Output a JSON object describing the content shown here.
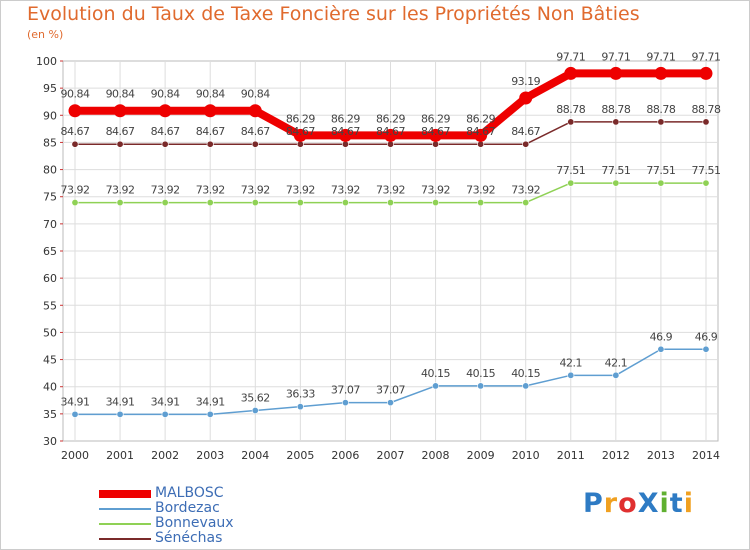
{
  "title": "Evolution du Taux de Taxe Foncière sur les Propriétés Non Bâties",
  "unit_label": "(en %)",
  "logo": {
    "text": "ProXiti",
    "colors": [
      "#2e7bc4",
      "#f0a020",
      "#e03030",
      "#2e7bc4",
      "#60b030",
      "#2e7bc4",
      "#f0a020"
    ]
  },
  "chart_data": {
    "type": "line",
    "title": "Evolution du Taux de Taxe Foncière sur les Propriétés Non Bâties",
    "ylabel": "(en %)",
    "xlabel": "",
    "x": [
      "2000",
      "2001",
      "2002",
      "2003",
      "2004",
      "2005",
      "2006",
      "2007",
      "2008",
      "2009",
      "2010",
      "2011",
      "2012",
      "2013",
      "2014"
    ],
    "ylim": [
      30,
      100
    ],
    "yticks": [
      30,
      35,
      40,
      45,
      50,
      55,
      60,
      65,
      70,
      75,
      80,
      85,
      90,
      95,
      100
    ],
    "grid": true,
    "legend_position": "bottom-left",
    "series": [
      {
        "name": "MALBOSC",
        "color": "#ee0000",
        "emphasis": true,
        "values": [
          90.84,
          90.84,
          90.84,
          90.84,
          90.84,
          86.29,
          86.29,
          86.29,
          86.29,
          86.29,
          93.19,
          97.71,
          97.71,
          97.71,
          97.71
        ]
      },
      {
        "name": "Bordezac",
        "color": "#5f9ed1",
        "values": [
          34.91,
          34.91,
          34.91,
          34.91,
          35.62,
          36.33,
          37.07,
          37.07,
          40.15,
          40.15,
          40.15,
          42.1,
          42.1,
          46.9,
          46.9
        ]
      },
      {
        "name": "Bonnevaux",
        "color": "#8fd155",
        "values": [
          73.92,
          73.92,
          73.92,
          73.92,
          73.92,
          73.92,
          73.92,
          73.92,
          73.92,
          73.92,
          73.92,
          77.51,
          77.51,
          77.51,
          77.51
        ]
      },
      {
        "name": "Sénéchas",
        "color": "#7a2a2a",
        "values": [
          84.67,
          84.67,
          84.67,
          84.67,
          84.67,
          84.67,
          84.67,
          84.67,
          84.67,
          84.67,
          84.67,
          88.78,
          88.78,
          88.78,
          88.78
        ]
      }
    ]
  }
}
